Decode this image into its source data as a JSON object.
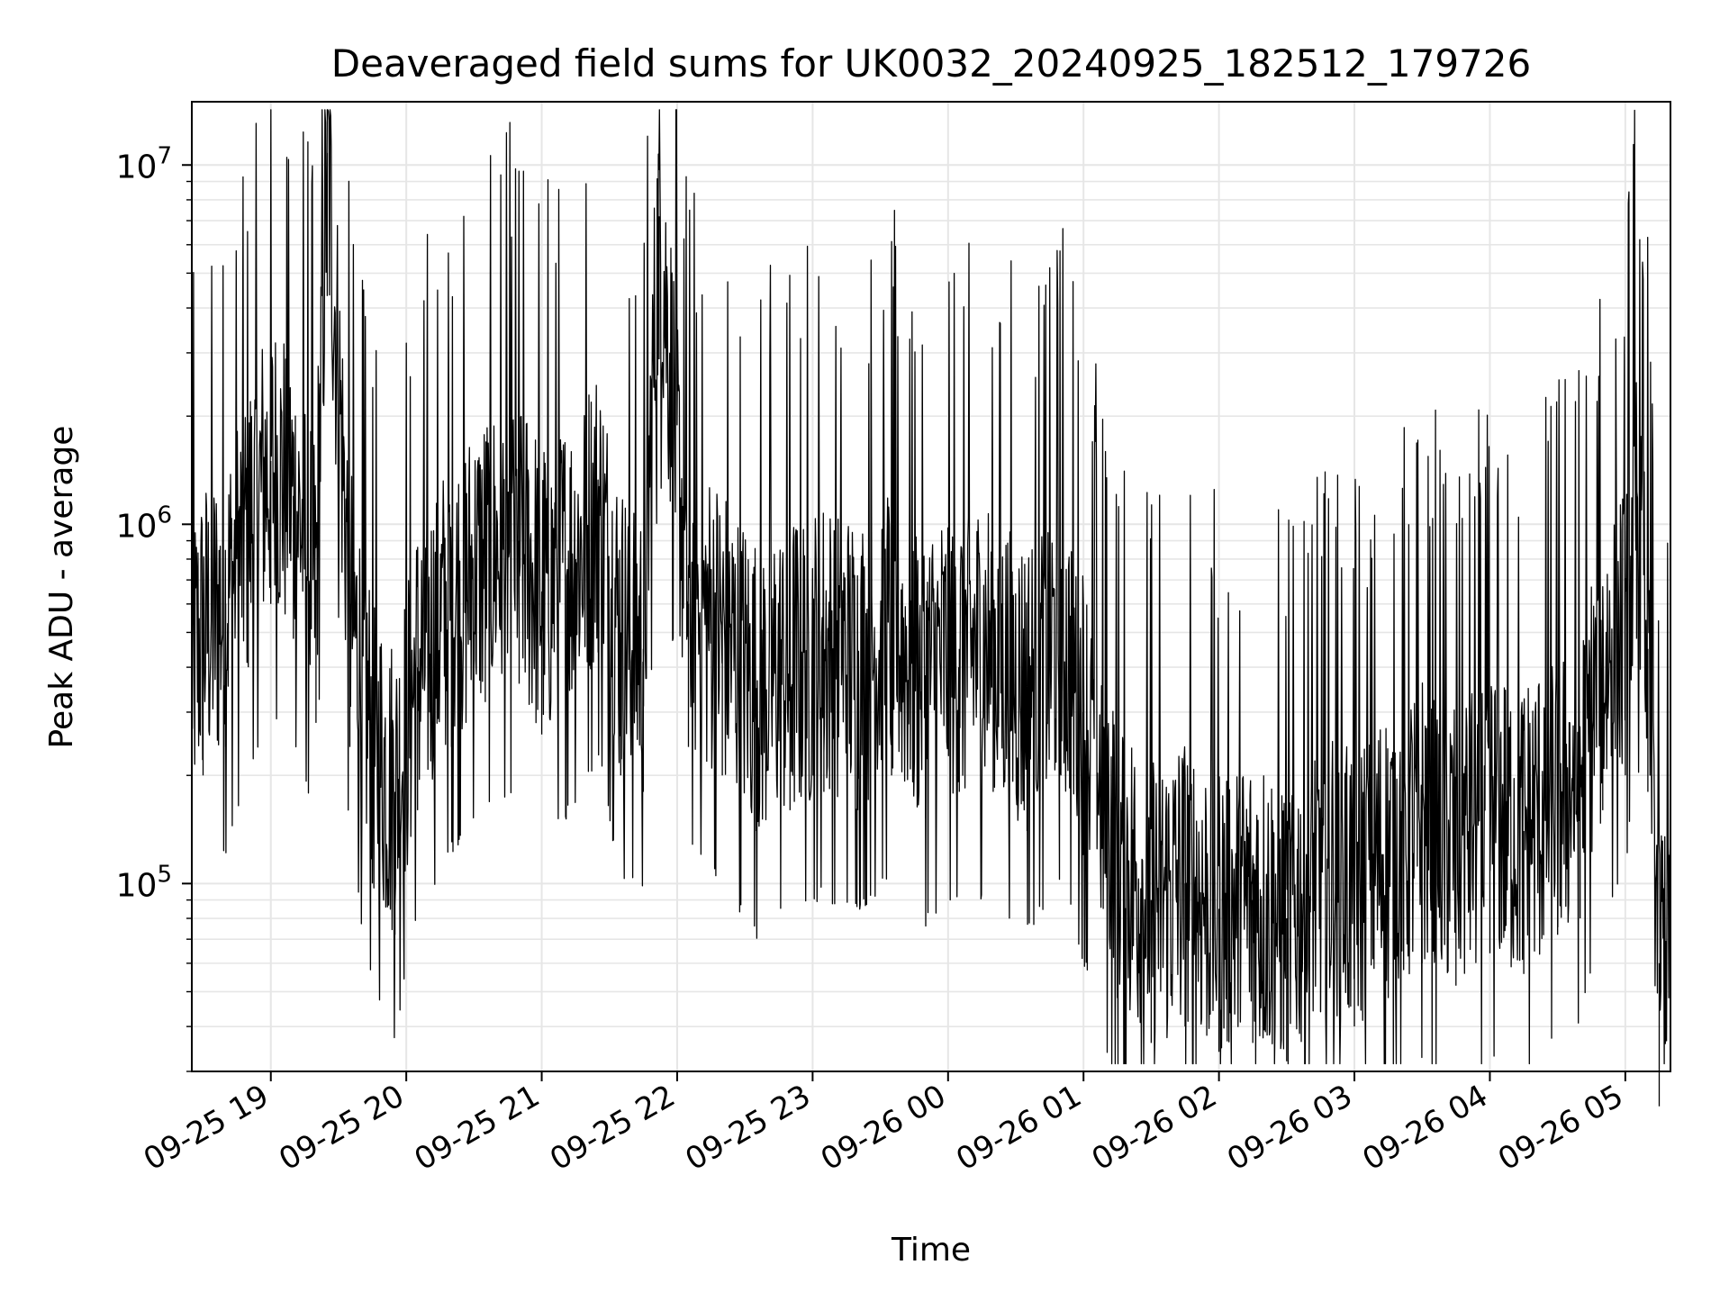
{
  "chart_data": {
    "type": "line",
    "title": "Deaveraged field sums for UK0032_20240925_182512_179726",
    "xlabel": "Time",
    "ylabel": "Peak ADU - average",
    "yscale": "log",
    "ylim": [
      30000,
      15000000
    ],
    "xlim": [
      "2024-09-25 18:25",
      "2024-09-26 05:20"
    ],
    "x_ticks": [
      "09-25 19",
      "09-25 20",
      "09-25 21",
      "09-25 22",
      "09-25 23",
      "09-26 00",
      "09-26 01",
      "09-26 02",
      "09-26 03",
      "09-26 04",
      "09-26 05"
    ],
    "y_ticks": [
      {
        "base": "10",
        "exp": "5",
        "value": 100000
      },
      {
        "base": "10",
        "exp": "6",
        "value": 1000000
      },
      {
        "base": "10",
        "exp": "7",
        "value": 10000000
      }
    ],
    "grid": true,
    "legend": false,
    "line_color": "#000000",
    "series": [
      {
        "x": [
          "2024-09-25 18:25",
          "2024-09-25 18:30",
          "2024-09-25 18:40",
          "2024-09-25 18:50",
          "2024-09-25 19:00",
          "2024-09-25 19:10",
          "2024-09-25 19:20",
          "2024-09-25 19:25",
          "2024-09-25 19:35",
          "2024-09-25 19:45",
          "2024-09-25 19:55",
          "2024-09-25 20:05",
          "2024-09-25 20:20",
          "2024-09-25 20:35",
          "2024-09-25 20:50",
          "2024-09-25 21:00",
          "2024-09-25 21:15",
          "2024-09-25 21:25",
          "2024-09-25 21:35",
          "2024-09-25 21:45",
          "2024-09-25 21:52",
          "2024-09-25 22:05",
          "2024-09-25 22:20",
          "2024-09-25 22:35",
          "2024-09-25 22:50",
          "2024-09-25 23:05",
          "2024-09-25 23:20",
          "2024-09-25 23:35",
          "2024-09-25 23:50",
          "2024-09-26 00:05",
          "2024-09-26 00:20",
          "2024-09-26 00:35",
          "2024-09-26 00:50",
          "2024-09-26 01:00",
          "2024-09-26 01:15",
          "2024-09-26 01:30",
          "2024-09-26 01:45",
          "2024-09-26 02:00",
          "2024-09-26 02:15",
          "2024-09-26 02:30",
          "2024-09-26 02:45",
          "2024-09-26 03:00",
          "2024-09-26 03:15",
          "2024-09-26 03:30",
          "2024-09-26 03:45",
          "2024-09-26 04:00",
          "2024-09-26 04:15",
          "2024-09-26 04:30",
          "2024-09-26 04:40",
          "2024-09-26 04:50",
          "2024-09-26 05:00",
          "2024-09-26 05:05",
          "2024-09-26 05:10",
          "2024-09-26 05:15",
          "2024-09-26 05:20"
        ],
        "y": [
          400000,
          500000,
          600000,
          1000000,
          1500000,
          1200000,
          700000,
          10800000,
          600000,
          250000,
          180000,
          400000,
          600000,
          800000,
          900000,
          650000,
          800000,
          1100000,
          500000,
          450000,
          7200000,
          600000,
          500000,
          350000,
          400000,
          450000,
          400000,
          500000,
          380000,
          450000,
          450000,
          350000,
          500000,
          300000,
          120000,
          90000,
          100000,
          85000,
          90000,
          80000,
          110000,
          100000,
          120000,
          150000,
          130000,
          160000,
          140000,
          180000,
          200000,
          400000,
          500000,
          1200000,
          450000,
          60000,
          95000
        ]
      }
    ]
  }
}
